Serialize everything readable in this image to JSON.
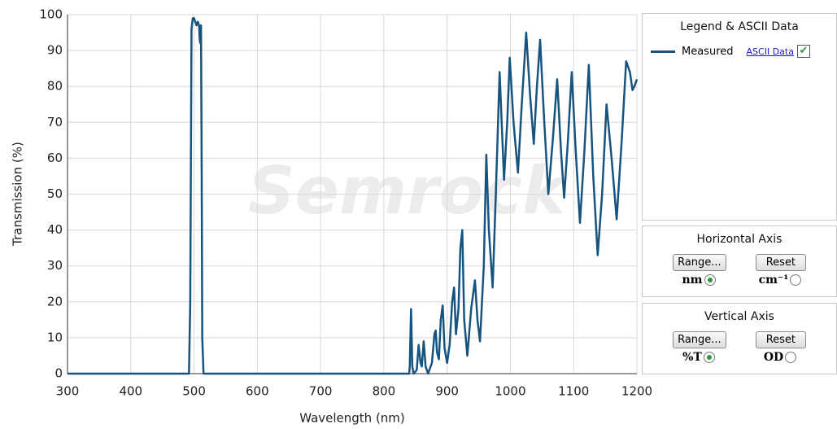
{
  "chart_data": {
    "type": "line",
    "xlabel": "Wavelength (nm)",
    "ylabel": "Transmission (%)",
    "watermark": "Semrock",
    "xlim": [
      300,
      1200
    ],
    "xticks": [
      300,
      400,
      500,
      600,
      700,
      800,
      900,
      1000,
      1100,
      1200
    ],
    "ylim": [
      0,
      100
    ],
    "yticks": [
      0,
      10,
      20,
      30,
      40,
      50,
      60,
      70,
      80,
      90,
      100
    ],
    "grid": true,
    "series": [
      {
        "name": "Measured",
        "color": "#16537e",
        "x": [
          300,
          492,
          494,
          496,
          498,
          500,
          502,
          504,
          506,
          508,
          509,
          510,
          511,
          512,
          513,
          515,
          840,
          841,
          843,
          845,
          847,
          852,
          855,
          858,
          860,
          863,
          866,
          870,
          876,
          880,
          882,
          884,
          887,
          890,
          893,
          896,
          900,
          904,
          908,
          911,
          914,
          918,
          921,
          924,
          927,
          932,
          938,
          944,
          948,
          952,
          958,
          962,
          966,
          972,
          977,
          983,
          990,
          995,
          999,
          1005,
          1012,
          1018,
          1025,
          1031,
          1037,
          1042,
          1047,
          1053,
          1060,
          1067,
          1074,
          1080,
          1085,
          1091,
          1097,
          1103,
          1110,
          1117,
          1124,
          1131,
          1138,
          1145,
          1152,
          1160,
          1168,
          1176,
          1183,
          1189,
          1193,
          1196,
          1200
        ],
        "values": [
          0,
          0,
          20,
          96,
          99,
          99,
          98,
          97,
          98,
          97,
          93,
          92,
          97,
          60,
          10,
          0,
          0,
          2,
          18,
          2,
          0,
          1,
          8,
          3,
          2,
          9,
          2,
          0,
          3,
          11,
          12,
          6,
          4,
          15,
          19,
          7,
          3,
          8,
          20,
          24,
          11,
          18,
          35,
          40,
          15,
          5,
          18,
          26,
          15,
          9,
          30,
          61,
          40,
          24,
          50,
          84,
          54,
          70,
          88,
          70,
          56,
          75,
          95,
          78,
          64,
          80,
          93,
          72,
          50,
          65,
          82,
          62,
          49,
          65,
          84,
          63,
          42,
          62,
          86,
          55,
          33,
          50,
          75,
          60,
          43,
          65,
          87,
          84,
          79,
          80,
          82
        ]
      }
    ]
  },
  "panels": {
    "legend": {
      "title": "Legend & ASCII Data",
      "link": "ASCII Data"
    },
    "horizontal": {
      "title": "Horizontal Axis",
      "range": "Range...",
      "reset": "Reset",
      "unit1": "nm",
      "unit2": "cm⁻¹"
    },
    "vertical": {
      "title": "Vertical  Axis",
      "range": "Range...",
      "reset": "Reset",
      "unit1": "%T",
      "unit2": "OD"
    }
  }
}
